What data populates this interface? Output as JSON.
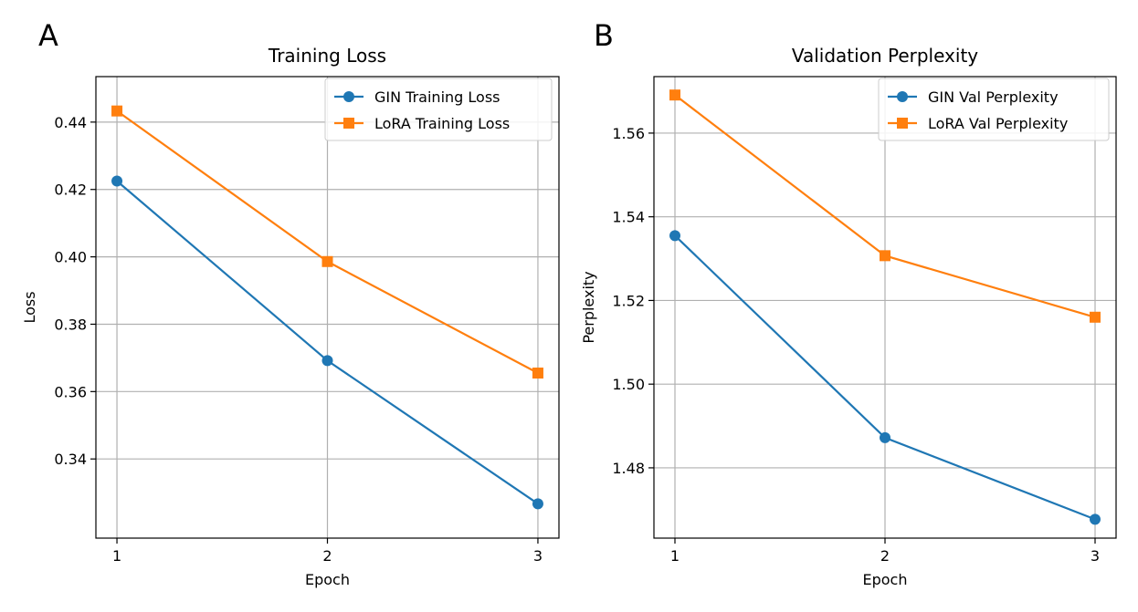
{
  "chart_data": [
    {
      "panel_label": "A",
      "type": "line",
      "title": "Training Loss",
      "xlabel": "Epoch",
      "ylabel": "Loss",
      "x": [
        1,
        2,
        3
      ],
      "xlim": [
        0.9,
        3.1
      ],
      "ylim": [
        0.3165,
        0.4535
      ],
      "xticks": [
        1,
        2,
        3
      ],
      "yticks": [
        0.34,
        0.36,
        0.38,
        0.4,
        0.42,
        0.44
      ],
      "ytick_labels": [
        "0.34",
        "0.36",
        "0.38",
        "0.40",
        "0.42",
        "0.44"
      ],
      "grid": true,
      "legend_position": "upper right",
      "series": [
        {
          "name": "GIN Training Loss",
          "values": [
            0.4225,
            0.3692,
            0.3267
          ],
          "color": "#1f77b4",
          "marker": "circle"
        },
        {
          "name": "LoRA Training Loss",
          "values": [
            0.4433,
            0.3986,
            0.3655
          ],
          "color": "#ff7f0e",
          "marker": "square"
        }
      ]
    },
    {
      "panel_label": "B",
      "type": "line",
      "title": "Validation Perplexity",
      "xlabel": "Epoch",
      "ylabel": "Perplexity",
      "x": [
        1,
        2,
        3
      ],
      "xlim": [
        0.9,
        3.1
      ],
      "ylim": [
        1.4632,
        1.5735
      ],
      "xticks": [
        1,
        2,
        3
      ],
      "yticks": [
        1.48,
        1.5,
        1.52,
        1.54,
        1.56
      ],
      "ytick_labels": [
        "1.48",
        "1.50",
        "1.52",
        "1.54",
        "1.56"
      ],
      "grid": true,
      "legend_position": "upper right",
      "series": [
        {
          "name": "GIN Val Perplexity",
          "values": [
            1.5355,
            1.4872,
            1.4677
          ],
          "color": "#1f77b4",
          "marker": "circle"
        },
        {
          "name": "LoRA Val Perplexity",
          "values": [
            1.5691,
            1.5307,
            1.516
          ],
          "color": "#ff7f0e",
          "marker": "square"
        }
      ]
    }
  ]
}
